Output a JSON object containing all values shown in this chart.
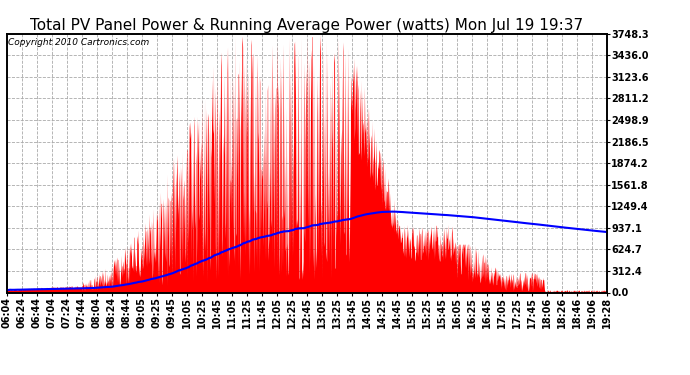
{
  "title": "Total PV Panel Power & Running Average Power (watts) Mon Jul 19 19:37",
  "copyright": "Copyright 2010 Cartronics.com",
  "background_color": "#ffffff",
  "plot_bg_color": "#ffffff",
  "ylabel_right": [
    "0.0",
    "312.4",
    "624.7",
    "937.1",
    "1249.4",
    "1561.8",
    "1874.2",
    "2186.5",
    "2498.9",
    "2811.2",
    "3123.6",
    "3436.0",
    "3748.3"
  ],
  "ymax": 3748.3,
  "ymin": 0.0,
  "ytick_interval": 312.35,
  "x_labels": [
    "06:04",
    "06:24",
    "06:44",
    "07:04",
    "07:24",
    "07:44",
    "08:04",
    "08:24",
    "08:44",
    "09:05",
    "09:25",
    "09:45",
    "10:05",
    "10:25",
    "10:45",
    "11:05",
    "11:25",
    "11:45",
    "12:05",
    "12:25",
    "12:45",
    "13:05",
    "13:25",
    "13:45",
    "14:05",
    "14:25",
    "14:45",
    "15:05",
    "15:25",
    "15:45",
    "16:05",
    "16:25",
    "16:45",
    "17:05",
    "17:25",
    "17:45",
    "18:06",
    "18:26",
    "18:46",
    "19:06",
    "19:28"
  ],
  "area_color": "#ff0000",
  "line_color": "#0000ff",
  "line_width": 1.5,
  "grid_color": "#aaaaaa",
  "grid_linestyle": "--",
  "border_color": "#000000",
  "title_fontsize": 11,
  "tick_fontsize": 7,
  "copyright_fontsize": 6.5
}
